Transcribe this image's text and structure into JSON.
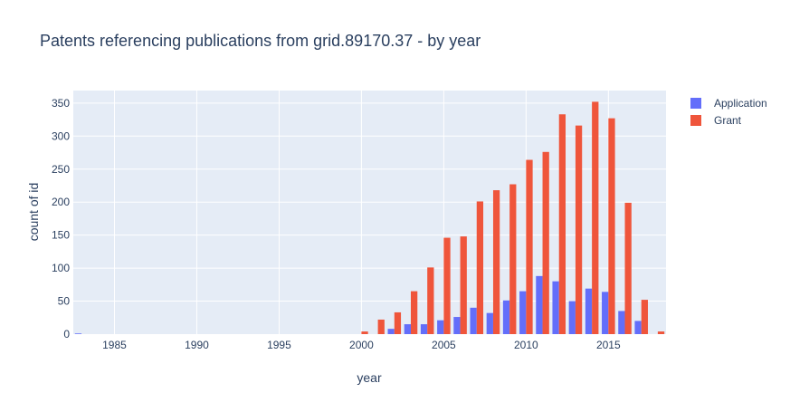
{
  "chart_data": {
    "type": "bar",
    "title": "Patents referencing publications from grid.89170.37 - by year",
    "xlabel": "year",
    "ylabel": "count of id",
    "xlim": [
      1982.5,
      2018.5
    ],
    "ylim": [
      0,
      369
    ],
    "xticks": [
      1985,
      1990,
      1995,
      2000,
      2005,
      2010,
      2015
    ],
    "yticks": [
      0,
      50,
      100,
      150,
      200,
      250,
      300,
      350
    ],
    "grid": true,
    "legend_position": "top-right",
    "series": [
      {
        "name": "Application",
        "color": "#636efa",
        "x": [
          1983,
          2002,
          2003,
          2004,
          2005,
          2006,
          2007,
          2008,
          2009,
          2010,
          2011,
          2012,
          2013,
          2014,
          2015,
          2016,
          2017
        ],
        "values": [
          1,
          8,
          15,
          15,
          21,
          26,
          40,
          32,
          51,
          65,
          88,
          80,
          50,
          69,
          64,
          35,
          20
        ]
      },
      {
        "name": "Grant",
        "color": "#ef553b",
        "x": [
          2000,
          2001,
          2002,
          2003,
          2004,
          2005,
          2006,
          2007,
          2008,
          2009,
          2010,
          2011,
          2012,
          2013,
          2014,
          2015,
          2016,
          2017,
          2018
        ],
        "values": [
          4,
          22,
          33,
          65,
          101,
          146,
          148,
          201,
          218,
          227,
          264,
          276,
          333,
          316,
          352,
          327,
          199,
          52,
          4
        ]
      }
    ]
  }
}
